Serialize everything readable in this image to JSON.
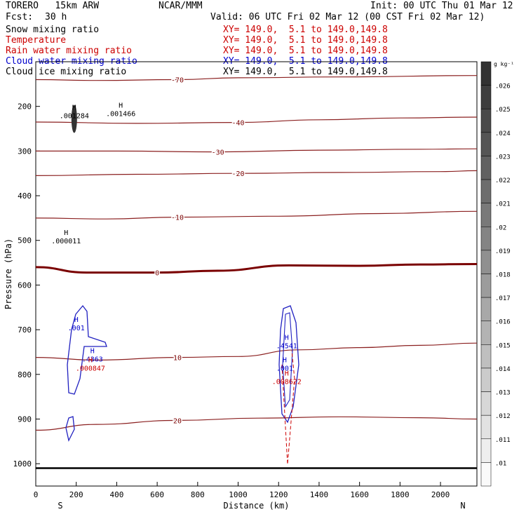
{
  "header": {
    "model": "TORERO   15km ARW",
    "center": "NCAR/MMM",
    "init": "Init: 00 UTC Thu 01 Mar 12",
    "fcst_label": "Fcst:",
    "fcst_value": "30 h",
    "valid": "Valid: 06 UTC Fri 02 Mar 12 (00 CST Fri 02 Mar 12)"
  },
  "fields": [
    {
      "name": "Snow mixing ratio",
      "xy": "XY= 149.0,  5.1 to 149.0,149.8",
      "color": "#000000"
    },
    {
      "name": "Temperature",
      "xy": "XY= 149.0,  5.1 to 149.0,149.8",
      "color": "#cc0000"
    },
    {
      "name": "Rain water mixing ratio",
      "xy": "XY= 149.0,  5.1 to 149.0,149.8",
      "color": "#cc0000"
    },
    {
      "name": "Cloud water mixing ratio",
      "xy": "XY= 149.0,  5.1 to 149.0,149.8",
      "color": "#0000cc"
    },
    {
      "name": "Cloud ice mixing ratio",
      "xy": "XY= 149.0,  5.1 to 149.0,149.8",
      "color": "#000000"
    }
  ],
  "chart_data": {
    "type": "contour",
    "xlabel": "Distance (km)",
    "ylabel": "Pressure (hPa)",
    "xlim": [
      0,
      2180
    ],
    "ylim": [
      1050,
      100
    ],
    "x_ticks": [
      0,
      200,
      400,
      600,
      800,
      1000,
      1200,
      1400,
      1600,
      1800,
      2000
    ],
    "y_ticks": [
      200,
      300,
      400,
      500,
      600,
      700,
      800,
      900,
      1000
    ],
    "side_labels": {
      "left": "S",
      "right": "N"
    },
    "temperature_contours": [
      {
        "label": "-70",
        "x": [
          0,
          300,
          700,
          1000,
          1500,
          2180
        ],
        "p": [
          140,
          142,
          140,
          136,
          134,
          131
        ]
      },
      {
        "label": "-40",
        "x": [
          0,
          500,
          1000,
          1400,
          1800,
          2180
        ],
        "p": [
          235,
          238,
          236,
          230,
          226,
          224
        ]
      },
      {
        "label": "-30",
        "x": [
          0,
          400,
          900,
          1400,
          1900,
          2180
        ],
        "p": [
          300,
          300,
          302,
          298,
          296,
          295
        ]
      },
      {
        "label": "-20",
        "x": [
          0,
          500,
          1000,
          1500,
          2000,
          2180
        ],
        "p": [
          355,
          352,
          350,
          348,
          346,
          344
        ]
      },
      {
        "label": "-10",
        "x": [
          0,
          350,
          700,
          1200,
          1700,
          2180
        ],
        "p": [
          450,
          452,
          448,
          446,
          440,
          435
        ]
      },
      {
        "label": "0",
        "x": [
          0,
          250,
          600,
          900,
          1250,
          1600,
          1900,
          2180
        ],
        "p": [
          560,
          572,
          572,
          568,
          556,
          557,
          554,
          553
        ]
      },
      {
        "label": "10",
        "x": [
          0,
          300,
          700,
          1000,
          1300,
          1600,
          1900,
          2180
        ],
        "p": [
          762,
          768,
          762,
          760,
          745,
          740,
          735,
          730
        ]
      },
      {
        "label": "20",
        "x": [
          0,
          300,
          700,
          1100,
          1500,
          1900,
          2180
        ],
        "p": [
          925,
          912,
          903,
          898,
          895,
          897,
          900
        ]
      }
    ],
    "cloud_water_max": [
      {
        "label": ".001",
        "x": 200,
        "p": 700
      },
      {
        "label": ".4541",
        "x": 1240,
        "p": 740
      },
      {
        "label": ".4363",
        "x": 280,
        "p": 770
      },
      {
        "label": ".001",
        "x": 1230,
        "p": 790
      }
    ],
    "rain_max": [
      {
        "label": ".000847",
        "x": 270,
        "p": 790
      },
      {
        "label": ".008622",
        "x": 1240,
        "p": 820
      }
    ],
    "snow_max": [
      {
        "label": ".001284",
        "x": 190,
        "p": 225
      },
      {
        "label": ".001466",
        "x": 420,
        "p": 220
      },
      {
        "label": ".000011",
        "x": 150,
        "p": 505
      }
    ],
    "colorbar": {
      "unit": "g kg⁻¹",
      "levels": [
        ".026",
        ".025",
        ".024",
        ".023",
        ".022",
        ".021",
        ".02",
        ".019",
        ".018",
        ".017",
        ".016",
        ".015",
        ".014",
        ".013",
        ".012",
        ".011",
        ".01"
      ]
    }
  }
}
